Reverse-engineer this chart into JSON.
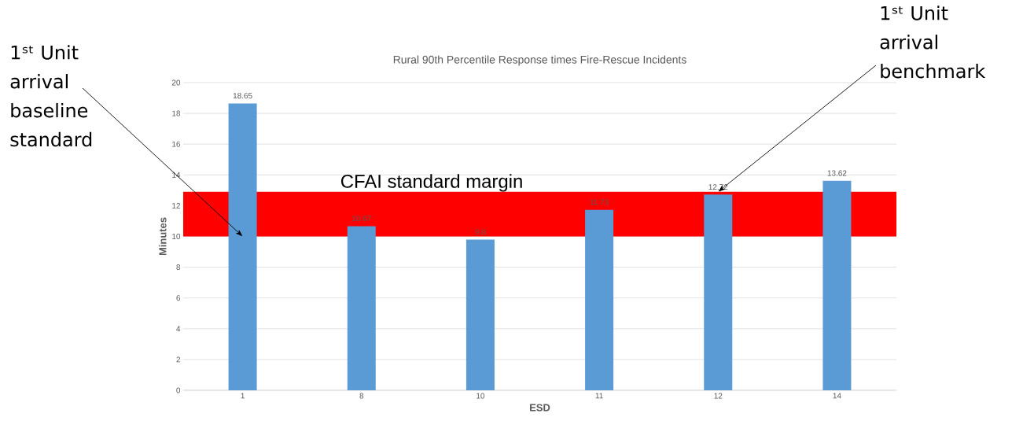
{
  "chart_data": {
    "type": "bar",
    "title": "Rural 90th Percentile Response times Fire-Rescue Incidents",
    "xlabel": "ESD",
    "ylabel": "Minutes",
    "categories": [
      "1",
      "8",
      "10",
      "11",
      "12",
      "14"
    ],
    "values": [
      18.65,
      10.67,
      9.8,
      11.73,
      12.72,
      13.62
    ],
    "color": "#5b9bd5",
    "data_labels": true,
    "ylim": [
      0,
      20
    ],
    "yticks": [
      0,
      2,
      4,
      6,
      8,
      10,
      12,
      14,
      16,
      18,
      20
    ],
    "grid": "y",
    "bands": [
      {
        "axis": "y",
        "from": 10,
        "to": 12.9,
        "label": "CFAI standard margin",
        "color": "#ff0000"
      }
    ],
    "annotations": [
      {
        "text": "1ˢᵗ Unit arrival baseline standard",
        "x": "1",
        "y": 10
      },
      {
        "text": "1ˢᵗ Unit arrival benchmark",
        "x": "12",
        "y": 12.9
      }
    ]
  }
}
